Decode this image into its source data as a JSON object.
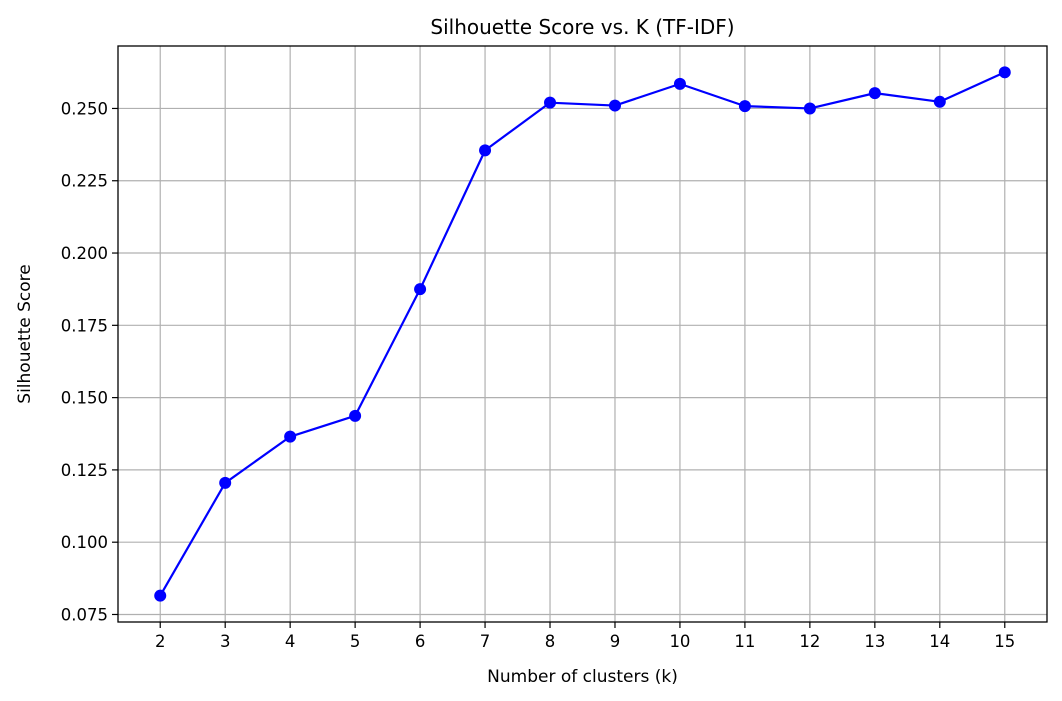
{
  "chart_data": {
    "type": "line",
    "title": "Silhouette Score vs. K (TF-IDF)",
    "xlabel": "Number of clusters (k)",
    "ylabel": "Silhouette Score",
    "x": [
      2,
      3,
      4,
      5,
      6,
      7,
      8,
      9,
      10,
      11,
      12,
      13,
      14,
      15
    ],
    "series": [
      {
        "values": [
          0.0815,
          0.1205,
          0.1365,
          0.1437,
          0.1875,
          0.2355,
          0.252,
          0.251,
          0.2585,
          0.2508,
          0.25,
          0.2553,
          0.2523,
          0.2625
        ],
        "color": "#0000ff",
        "marker": "circle"
      }
    ],
    "x_ticks": [
      "2",
      "3",
      "4",
      "5",
      "6",
      "7",
      "8",
      "9",
      "10",
      "11",
      "12",
      "13",
      "14",
      "15"
    ],
    "y_ticks": [
      "0.075",
      "0.100",
      "0.125",
      "0.150",
      "0.175",
      "0.200",
      "0.225",
      "0.250"
    ],
    "xlim": [
      1.35,
      15.65
    ],
    "ylim": [
      0.0724,
      0.2716
    ],
    "grid": true,
    "grid_color": "#b0b0b0",
    "legend": "none"
  }
}
